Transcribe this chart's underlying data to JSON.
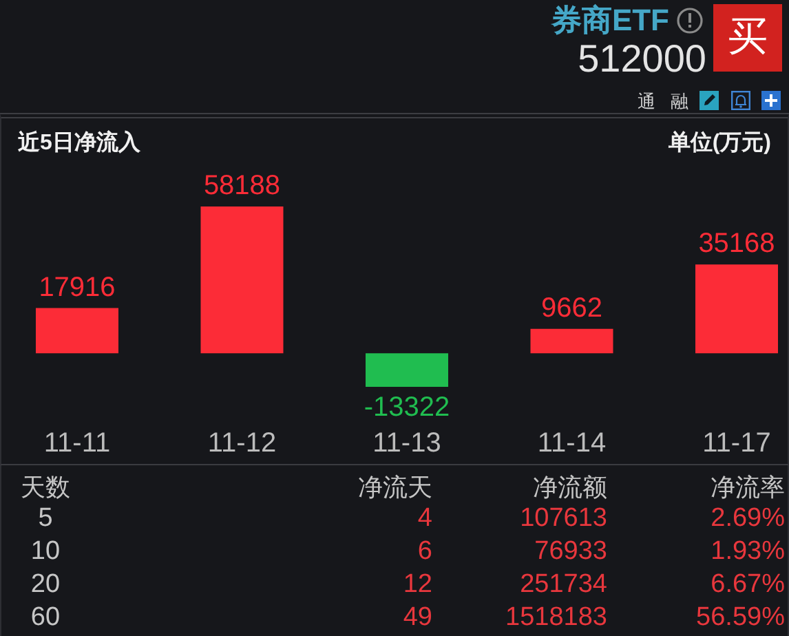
{
  "chart_data": [
    {
      "type": "other",
      "title": "券商ETF",
      "subtitle": "512000",
      "annotations": [
        "买",
        "通",
        "融"
      ]
    },
    {
      "type": "bar",
      "title": "近5日净流入",
      "ylabel": "单位(万元)",
      "categories": [
        "11-11",
        "11-12",
        "11-13",
        "11-14",
        "11-17"
      ],
      "values": [
        17916,
        58188,
        -13322,
        9662,
        35168
      ],
      "colors": [
        "#fc2c37",
        "#fc2c37",
        "#20bd50",
        "#fc2c37",
        "#fc2c37"
      ],
      "data_labels": true
    },
    {
      "type": "other",
      "ylabel": "天数",
      "categories": [
        "净流天",
        "净流额",
        "净流率"
      ],
      "y_categories": [
        "5",
        "10",
        "20",
        "60"
      ],
      "cell_labels": [
        [
          "4",
          "107613",
          "2.69%"
        ],
        [
          "6",
          "76933",
          "1.93%"
        ],
        [
          "12",
          "251734",
          "6.67%"
        ],
        [
          "49",
          "1518183",
          "56.59%"
        ]
      ],
      "color": "#e8373d"
    }
  ]
}
